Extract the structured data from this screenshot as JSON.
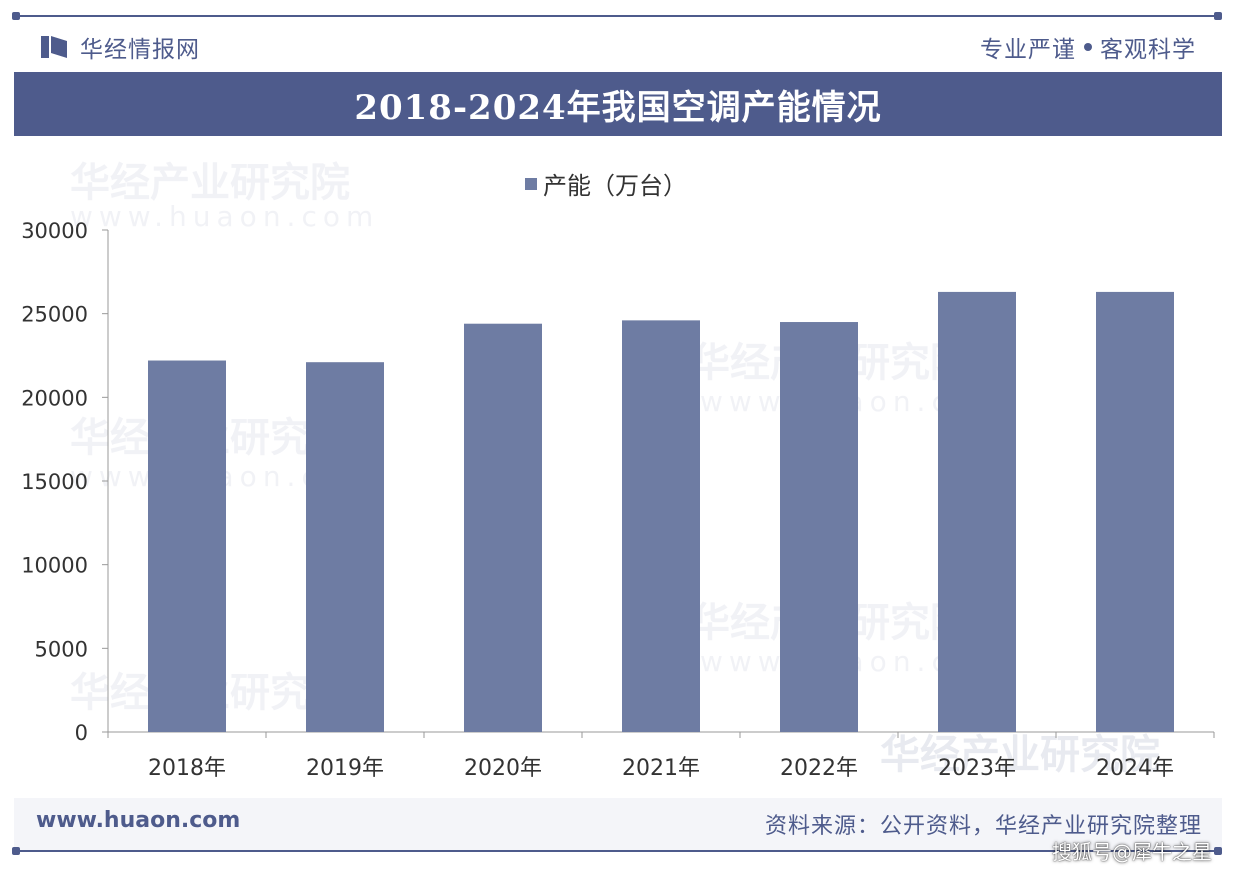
{
  "header": {
    "brand_name": "华经情报网",
    "motto_left": "专业严谨",
    "motto_right": "客观科学"
  },
  "watermark": {
    "text": "华经产业研究院",
    "url": "www.huaon.com"
  },
  "colors": {
    "brand": "#4e5b8c",
    "bar": "#6e7ca3",
    "axis": "#999999"
  },
  "chart_data": {
    "type": "bar",
    "title": "2018-2024年我国空调产能情况",
    "categories": [
      "2018年",
      "2019年",
      "2020年",
      "2021年",
      "2022年",
      "2023年",
      "2024年"
    ],
    "series": [
      {
        "name": "产能（万台）",
        "values": [
          22200,
          22100,
          24400,
          24600,
          24500,
          26300,
          26300
        ]
      }
    ],
    "ylim": [
      0,
      30000
    ],
    "yticks": [
      0,
      5000,
      10000,
      15000,
      20000,
      25000,
      30000
    ],
    "xlabel": "",
    "ylabel": "",
    "legend": "top-center",
    "grid": false
  },
  "footer": {
    "url": "www.huaon.com",
    "source": "资料来源：公开资料，华经产业研究院整理"
  },
  "credit": "搜狐号@犀牛之星"
}
